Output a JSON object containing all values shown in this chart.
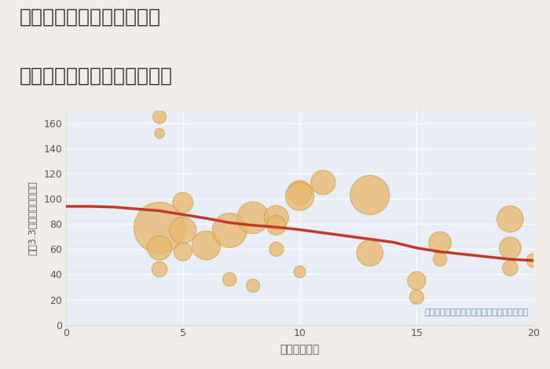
{
  "title_line1": "奈良県奈良市西千代ヶ丘の",
  "title_line2": "駅距離別中古マンション価格",
  "xlabel": "駅距離（分）",
  "ylabel": "坪（3.3㎡）単価（万円）",
  "annotation": "円の大きさは、取引のあった物件面積を示す",
  "background_color": "#f0ede8",
  "plot_bg_color": "#e8eef5",
  "scatter_color": "#e8b86d",
  "scatter_alpha": 0.78,
  "scatter_edge_color": "#c8953a",
  "scatter_edge_width": 0.6,
  "trend_color": "#c0392b",
  "trend_linewidth": 2.5,
  "xlim": [
    0,
    20
  ],
  "ylim": [
    0,
    170
  ],
  "xticks": [
    0,
    5,
    10,
    15,
    20
  ],
  "yticks": [
    0,
    20,
    40,
    60,
    80,
    100,
    120,
    140,
    160
  ],
  "tick_color": "#555555",
  "tick_fontsize": 9,
  "xlabel_fontsize": 10,
  "ylabel_fontsize": 9,
  "title_fontsize": 18,
  "annotation_fontsize": 8,
  "annotation_color": "#7090b0",
  "title_color": "#333333",
  "grid_color": "#ffffff",
  "grid_linewidth": 0.9,
  "scatter_x": [
    4,
    4,
    4,
    4,
    4,
    5,
    5,
    5,
    6,
    7,
    7,
    8,
    8,
    9,
    9,
    9,
    10,
    10,
    10,
    11,
    13,
    13,
    15,
    15,
    16,
    16,
    19,
    19,
    19,
    20
  ],
  "scatter_y": [
    165,
    152,
    77,
    61,
    44,
    97,
    75,
    58,
    63,
    75,
    36,
    85,
    31,
    85,
    79,
    60,
    105,
    102,
    42,
    113,
    57,
    103,
    22,
    35,
    65,
    52,
    84,
    61,
    45,
    51
  ],
  "scatter_size": [
    150,
    80,
    2200,
    500,
    200,
    350,
    600,
    280,
    700,
    1000,
    160,
    850,
    150,
    500,
    320,
    170,
    500,
    680,
    120,
    500,
    580,
    1300,
    170,
    280,
    420,
    160,
    580,
    400,
    200,
    160
  ],
  "trend_x": [
    0,
    1,
    2,
    3,
    4,
    5,
    6,
    7,
    8,
    9,
    10,
    11,
    12,
    13,
    14,
    15,
    16,
    17,
    18,
    19,
    20
  ],
  "trend_y": [
    94,
    94,
    93.5,
    92,
    90.5,
    87.5,
    84.5,
    81,
    79,
    77.5,
    75.5,
    73,
    70.5,
    68,
    65.5,
    61,
    58,
    56,
    54,
    52,
    51
  ]
}
